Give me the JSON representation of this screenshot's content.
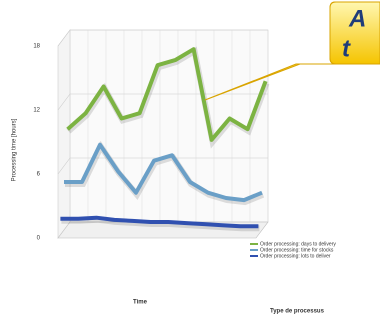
{
  "chart_data": {
    "type": "line",
    "y_label": "Processing time [hours]",
    "x_label": "Time",
    "legend_title": "Type de processus",
    "callout": [
      "A",
      "t"
    ],
    "categories": [
      null,
      null,
      null,
      null,
      null,
      null,
      null,
      null,
      null,
      null,
      null,
      null
    ],
    "series": [
      {
        "name": "Order processing: days to delivery",
        "color": "#7cb342",
        "values": [
          9,
          10.5,
          13,
          10,
          10.5,
          15,
          15.5,
          16.5,
          8,
          10,
          9,
          13.5
        ]
      },
      {
        "name": "Order processing: time for stocks",
        "color": "#6a9fc7",
        "values": [
          4.5,
          4.5,
          8,
          5.5,
          3.5,
          6.5,
          7,
          4.5,
          3.5,
          3,
          2.8,
          3.5
        ]
      },
      {
        "name": "Order processing: lots to deliver",
        "color": "#3050b0",
        "values": [
          1.5,
          1.5,
          1.6,
          1.4,
          1.3,
          1.2,
          1.2,
          1.1,
          1,
          0.9,
          0.8,
          0.8
        ]
      }
    ],
    "ylim": [
      0,
      18
    ],
    "yticks": [
      0,
      6,
      12,
      18
    ],
    "grid": true
  }
}
